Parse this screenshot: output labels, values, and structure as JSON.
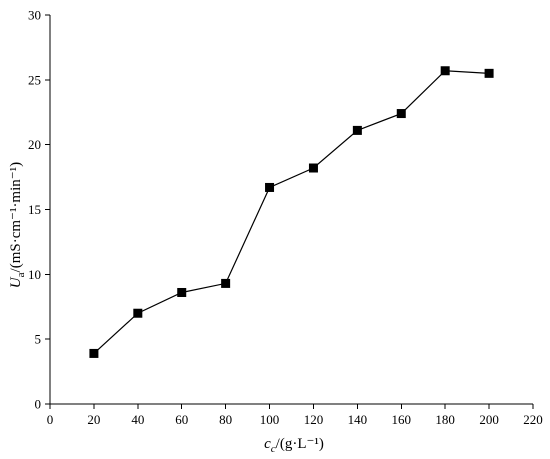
{
  "chart_data": {
    "type": "line",
    "x": [
      20,
      40,
      60,
      80,
      100,
      120,
      140,
      160,
      180,
      200
    ],
    "y": [
      3.9,
      7.0,
      8.6,
      9.3,
      16.7,
      18.2,
      21.1,
      22.4,
      25.7,
      25.5
    ],
    "xlim": [
      0,
      220
    ],
    "ylim": [
      0,
      30
    ],
    "x_ticks": [
      0,
      20,
      40,
      60,
      80,
      100,
      120,
      140,
      160,
      180,
      200,
      220
    ],
    "y_ticks": [
      0,
      5,
      10,
      15,
      20,
      25,
      30
    ],
    "xlabel": {
      "symbol": "c",
      "subscript": "c",
      "unit": "/(g·L⁻¹)"
    },
    "ylabel": {
      "symbol": "U",
      "subscript": "a",
      "unit": "/(mS·cm⁻¹·min⁻¹)"
    },
    "color": "#000000",
    "grid": false
  }
}
